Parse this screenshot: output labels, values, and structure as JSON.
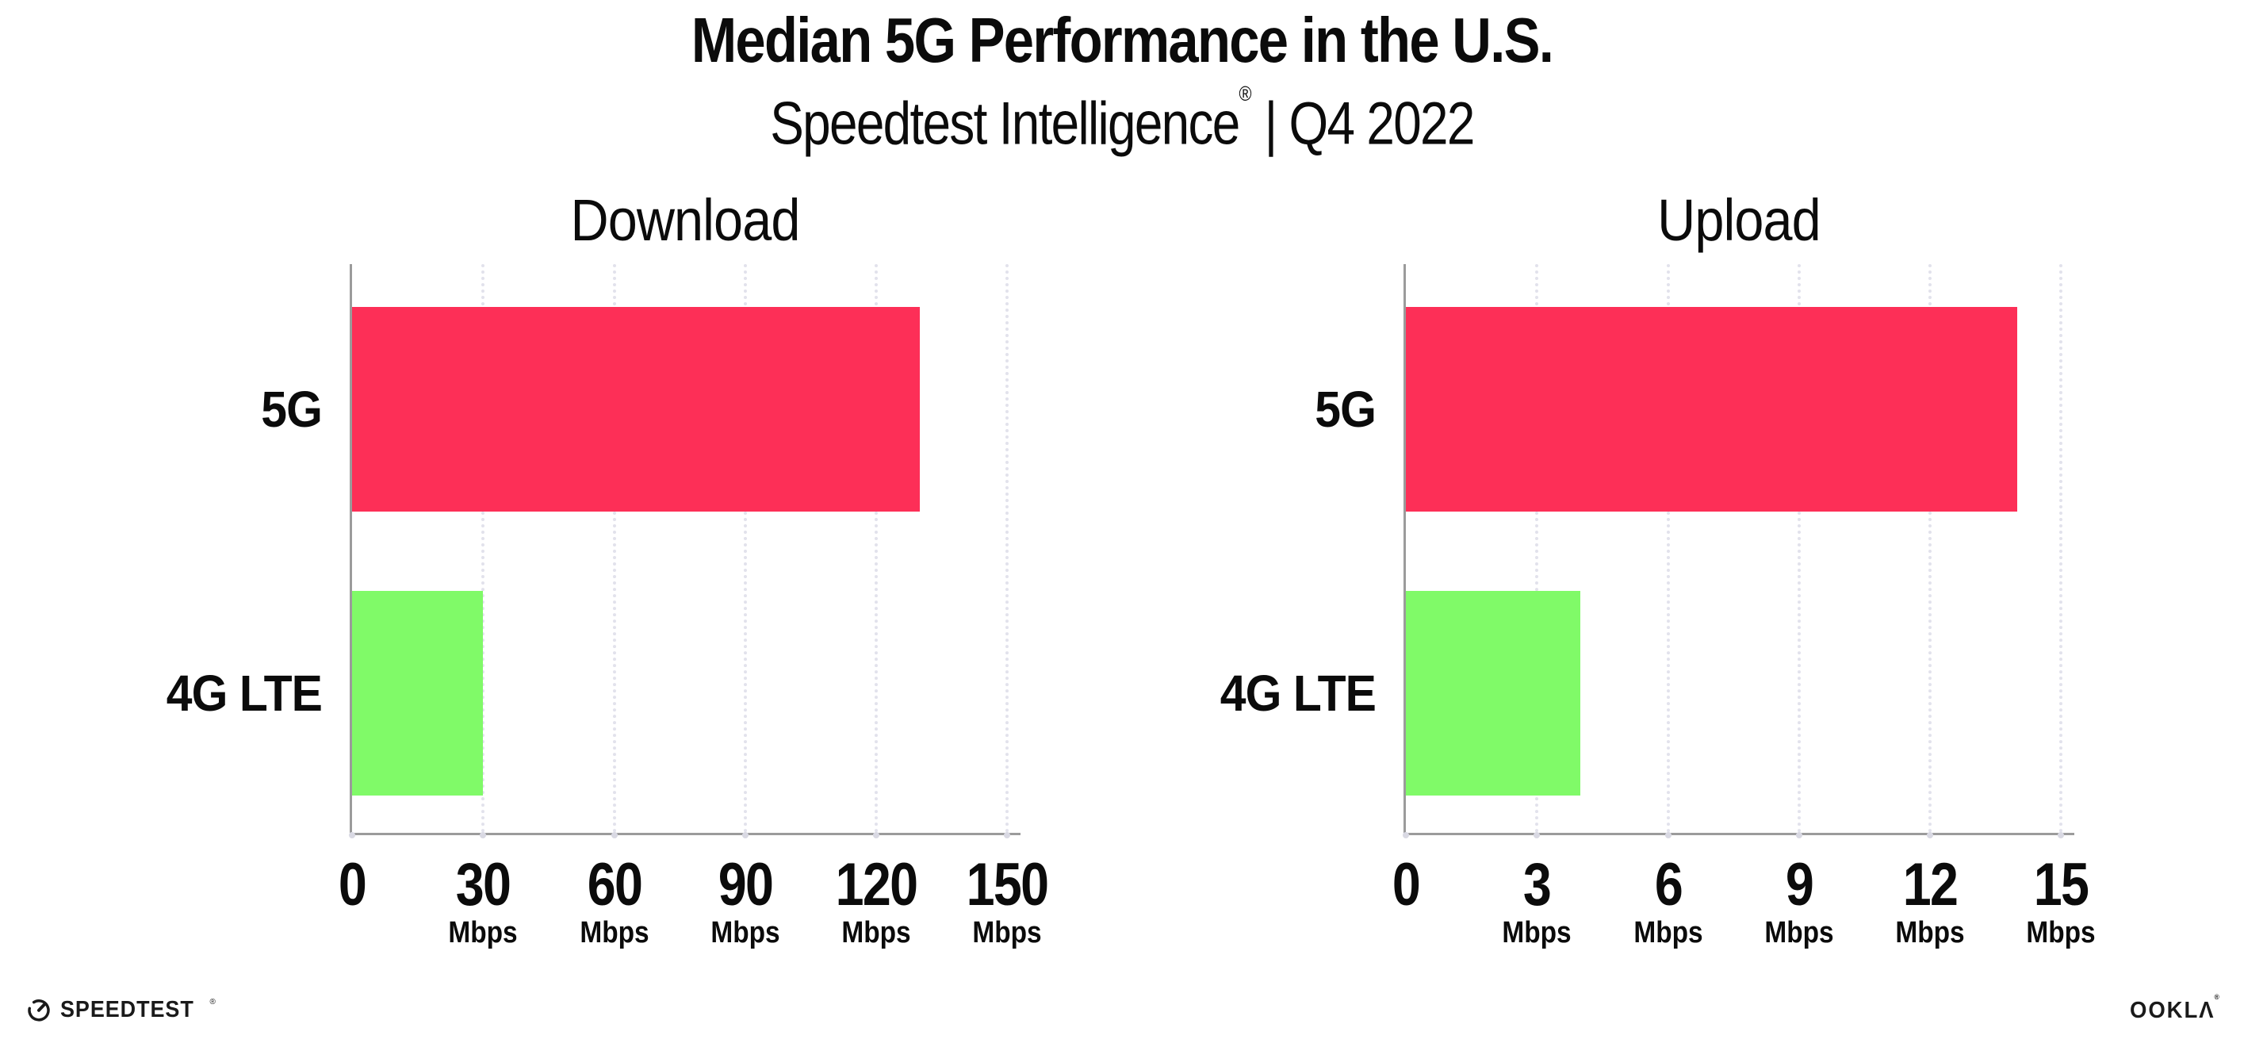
{
  "header": {
    "title": "Median 5G Performance in the U.S.",
    "subtitle_brand": "Speedtest Intelligence",
    "subtitle_reg_mark": "®",
    "subtitle_rest": " | Q4 2022"
  },
  "chart_data": [
    {
      "type": "bar",
      "orientation": "horizontal",
      "title": "Download",
      "categories": [
        "5G",
        "4G LTE"
      ],
      "values": [
        130,
        30
      ],
      "unit": "Mbps",
      "xlim": [
        0,
        153
      ],
      "xticks": [
        0,
        30,
        60,
        90,
        120,
        150
      ],
      "tick_unit_label": "Mbps",
      "grid": "dotted-vertical-major",
      "legend": "none",
      "bar_colors": [
        "#FD2F57",
        "#80FA68"
      ]
    },
    {
      "type": "bar",
      "orientation": "horizontal",
      "title": "Upload",
      "categories": [
        "5G",
        "4G LTE"
      ],
      "values": [
        14,
        4
      ],
      "unit": "Mbps",
      "xlim": [
        0,
        15.3
      ],
      "xticks": [
        0,
        3,
        6,
        9,
        12,
        15
      ],
      "tick_unit_label": "Mbps",
      "grid": "dotted-vertical-major",
      "legend": "none",
      "bar_colors": [
        "#FD2F57",
        "#80FA68"
      ]
    }
  ],
  "colors": {
    "bar_5g": "#FD2F57",
    "bar_4g_lte": "#80FA68",
    "axis_line": "#9B9B9B",
    "gridline_dots": "#E2E2EC",
    "text": "#0B0B0B"
  },
  "footer": {
    "speedtest_label": "SPEEDTEST",
    "speedtest_reg_mark": "®",
    "ookla_label": "OOKLΛ",
    "ookla_reg_mark": "®"
  }
}
